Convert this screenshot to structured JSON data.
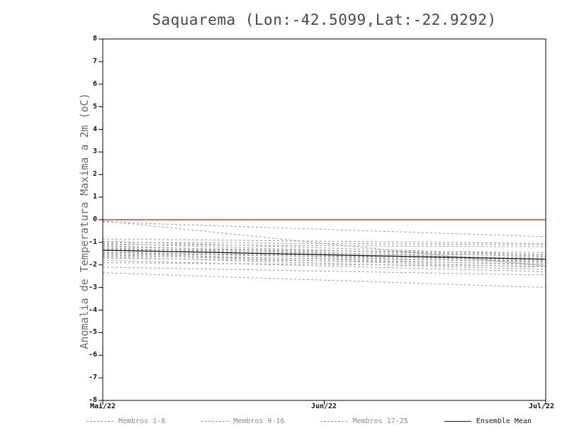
{
  "chart_data": {
    "type": "line",
    "title": "Saquarema (Lon:-42.5099,Lat:-22.9292)",
    "ylabel": "Anomalia de Temperatura Maxima a 2m (oC)",
    "xlabel": "",
    "x_ticks": [
      "Mai/22",
      "Jun/22",
      "Jul/22"
    ],
    "ylim": [
      -8,
      8
    ],
    "y_tick_step": 1,
    "grid": false,
    "zero_line": {
      "value": 0,
      "color": "#e23b3b"
    },
    "member_color": "#999999",
    "mean_color": "#1a1a1a",
    "series": [
      {
        "name": "Membro 1",
        "group": "Membros 1-8",
        "values": [
          -0.05,
          -2.05
        ]
      },
      {
        "name": "Membro 2",
        "group": "Membros 1-8",
        "values": [
          -0.1,
          -0.75
        ]
      },
      {
        "name": "Membro 3",
        "group": "Membros 1-8",
        "values": [
          -0.85,
          -1.05
        ]
      },
      {
        "name": "Membro 4",
        "group": "Membros 1-8",
        "values": [
          -0.95,
          -1.55
        ]
      },
      {
        "name": "Membro 5",
        "group": "Membros 1-8",
        "values": [
          -1.0,
          -1.1
        ]
      },
      {
        "name": "Membro 6",
        "group": "Membros 1-8",
        "values": [
          -1.05,
          -1.65
        ]
      },
      {
        "name": "Membro 7",
        "group": "Membros 1-8",
        "values": [
          -1.1,
          -1.2
        ]
      },
      {
        "name": "Membro 8",
        "group": "Membros 1-8",
        "values": [
          -1.15,
          -1.75
        ]
      },
      {
        "name": "Membro 9",
        "group": "Membros 9-16",
        "values": [
          -1.2,
          -1.55
        ]
      },
      {
        "name": "Membro 10",
        "group": "Membros 9-16",
        "values": [
          -1.25,
          -1.8
        ]
      },
      {
        "name": "Membro 11",
        "group": "Membros 9-16",
        "values": [
          -1.3,
          -1.45
        ]
      },
      {
        "name": "Membro 12",
        "group": "Membros 9-16",
        "values": [
          -1.3,
          -1.85
        ]
      },
      {
        "name": "Membro 13",
        "group": "Membros 9-16",
        "values": [
          -1.35,
          -1.6
        ]
      },
      {
        "name": "Membro 14",
        "group": "Membros 9-16",
        "values": [
          -1.4,
          -1.9
        ]
      },
      {
        "name": "Membro 15",
        "group": "Membros 9-16",
        "values": [
          -1.45,
          -1.7
        ]
      },
      {
        "name": "Membro 16",
        "group": "Membros 9-16",
        "values": [
          -1.5,
          -2.0
        ]
      },
      {
        "name": "Membro 17",
        "group": "Membros 17-25",
        "values": [
          -1.5,
          -1.75
        ]
      },
      {
        "name": "Membro 18",
        "group": "Membros 17-25",
        "values": [
          -1.55,
          -2.1
        ]
      },
      {
        "name": "Membro 19",
        "group": "Membros 17-25",
        "values": [
          -1.6,
          -1.85
        ]
      },
      {
        "name": "Membro 20",
        "group": "Membros 17-25",
        "values": [
          -1.65,
          -2.2
        ]
      },
      {
        "name": "Membro 21",
        "group": "Membros 17-25",
        "values": [
          -1.7,
          -1.95
        ]
      },
      {
        "name": "Membro 22",
        "group": "Membros 17-25",
        "values": [
          -1.8,
          -2.3
        ]
      },
      {
        "name": "Membro 23",
        "group": "Membros 17-25",
        "values": [
          -1.9,
          -2.05
        ]
      },
      {
        "name": "Membro 24",
        "group": "Membros 17-25",
        "values": [
          -2.1,
          -2.45
        ]
      },
      {
        "name": "Membro 25",
        "group": "Membros 17-25",
        "values": [
          -2.35,
          -3.0
        ]
      }
    ],
    "ensemble_mean": {
      "name": "Ensemble Mean",
      "values": [
        -1.35,
        -1.75
      ]
    },
    "legend": [
      {
        "label": "Membros 1-8",
        "style": "dashed",
        "color": "#999999"
      },
      {
        "label": "Membros 9-16",
        "style": "dashed",
        "color": "#999999"
      },
      {
        "label": "Membros 17-25",
        "style": "dashed",
        "color": "#999999"
      },
      {
        "label": "Ensemble Mean",
        "style": "solid",
        "color": "#1a1a1a"
      }
    ]
  }
}
